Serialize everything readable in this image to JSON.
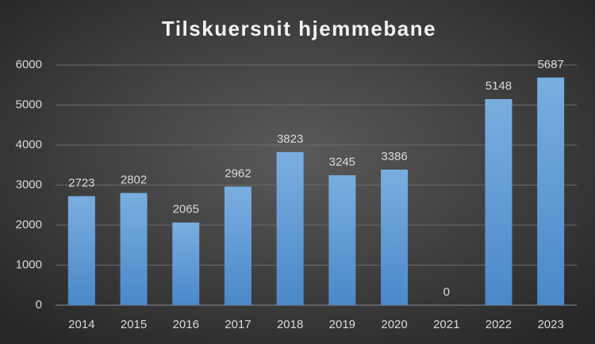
{
  "chart_data": {
    "type": "bar",
    "title": "Tilskuersnit hjemmebane",
    "categories": [
      "2014",
      "2015",
      "2016",
      "2017",
      "2018",
      "2019",
      "2020",
      "2021",
      "2022",
      "2023"
    ],
    "values": [
      2723,
      2802,
      2065,
      2962,
      3823,
      3245,
      3386,
      0,
      5148,
      5687
    ],
    "color": "#5b9bd5",
    "ylim": [
      0,
      6000
    ],
    "yticks": [
      0,
      1000,
      2000,
      3000,
      4000,
      5000,
      6000
    ],
    "grid": true
  }
}
